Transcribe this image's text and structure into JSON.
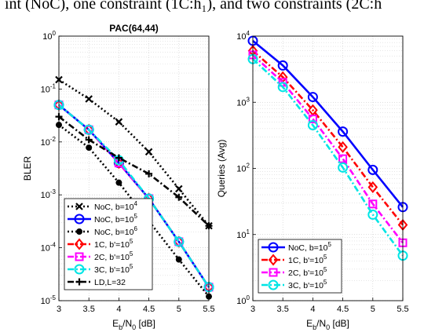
{
  "caption": "int (NoC), one constraint (1C:h₁), and two constraints (2C:h",
  "chart_data": [
    {
      "type": "line",
      "title": "PAC(64,44)",
      "xlabel": "Eb/N0 [dB]",
      "ylabel": "BLER",
      "xlim": [
        3,
        5.5
      ],
      "ylim": [
        1e-05,
        1
      ],
      "yscale": "log",
      "grid": true,
      "legend": "bottom-left",
      "x_ticks": [
        "3",
        "3.5",
        "4",
        "4.5",
        "5",
        "5.5"
      ],
      "y_ticks": [
        "10^-5",
        "10^-4",
        "10^-3",
        "10^-2",
        "10^-1",
        "10^0"
      ],
      "x": [
        3,
        3.5,
        4,
        4.5,
        5,
        5.5
      ],
      "series": [
        {
          "name": "NoC, b=10^4",
          "values": [
            0.15,
            0.065,
            0.024,
            0.0065,
            0.0013,
            0.00026
          ],
          "color": "#000000",
          "dash": "dot",
          "marker": "x"
        },
        {
          "name": "NoC, b=10^5",
          "values": [
            0.05,
            0.017,
            0.004,
            0.00085,
            0.00013,
            1.8e-05
          ],
          "color": "#0000ff",
          "dash": "solid",
          "marker": "circle"
        },
        {
          "name": "NoC, b=10^6",
          "values": [
            0.021,
            0.0078,
            0.0017,
            0.00032,
            6e-05,
            1.2e-05
          ],
          "color": "#000000",
          "dash": "dot",
          "marker": "dot"
        },
        {
          "name": "1C, b'=10^5",
          "values": [
            0.05,
            0.017,
            0.004,
            0.00085,
            0.00013,
            1.8e-05
          ],
          "color": "#ff0000",
          "dash": "dashdot",
          "marker": "diamond"
        },
        {
          "name": "2C, b'=10^5",
          "values": [
            0.05,
            0.017,
            0.004,
            0.00085,
            0.00013,
            1.8e-05
          ],
          "color": "#ff00ff",
          "dash": "dashdot",
          "marker": "square"
        },
        {
          "name": "3C, b'=10^5",
          "values": [
            0.05,
            0.017,
            0.0045,
            0.00085,
            0.00013,
            1.8e-05
          ],
          "color": "#00e5e5",
          "dash": "dashdot",
          "marker": "circle"
        },
        {
          "name": "LD,L=32",
          "values": [
            0.03,
            0.011,
            0.005,
            0.0025,
            0.0009,
            0.00026
          ],
          "color": "#000000",
          "dash": "dashdot",
          "marker": "plus"
        }
      ]
    },
    {
      "type": "line",
      "title": "",
      "xlabel": "Eb/N0 [dB]",
      "ylabel": "Queries (Avg)",
      "xlim": [
        3,
        5.5
      ],
      "ylim": [
        1,
        10000
      ],
      "yscale": "log",
      "grid": true,
      "legend": "bottom-left",
      "x_ticks": [
        "3",
        "3.5",
        "4",
        "4.5",
        "5",
        "5.5"
      ],
      "y_ticks": [
        "10^0",
        "10^1",
        "10^2",
        "10^3",
        "10^4"
      ],
      "x": [
        3,
        3.5,
        4,
        4.5,
        5,
        5.5
      ],
      "series": [
        {
          "name": "NoC, b=10^5",
          "values": [
            8500,
            3600,
            1200,
            360,
            95,
            26
          ],
          "color": "#0000ff",
          "dash": "solid",
          "marker": "circle"
        },
        {
          "name": "1C, b'=10^5",
          "values": [
            6000,
            2400,
            760,
            210,
            52,
            14
          ],
          "color": "#ff0000",
          "dash": "dashdot",
          "marker": "diamond"
        },
        {
          "name": "2C, b'=10^5",
          "values": [
            5200,
            2000,
            560,
            140,
            29,
            7.5
          ],
          "color": "#ff00ff",
          "dash": "dashdot",
          "marker": "square"
        },
        {
          "name": "3C, b'=10^5",
          "values": [
            4500,
            1700,
            450,
            103,
            20,
            4.8
          ],
          "color": "#00e5e5",
          "dash": "dashdot",
          "marker": "circle"
        }
      ]
    }
  ]
}
